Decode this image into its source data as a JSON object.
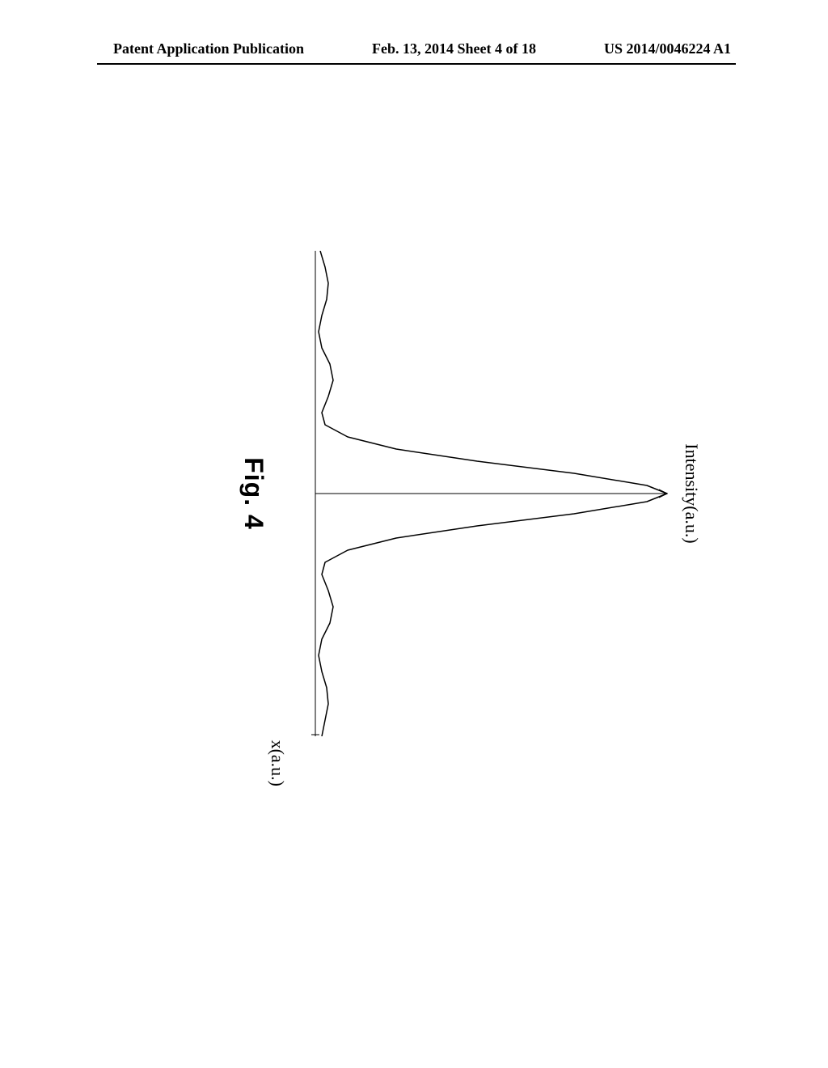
{
  "header": {
    "left": "Patent Application Publication",
    "center": "Feb. 13, 2014  Sheet 4 of 18",
    "right": "US 2014/0046224 A1"
  },
  "figure": {
    "y_axis_label": "Intensity(a.u.)",
    "x_axis_label": "x(a.u.)",
    "figure_label": "Fig. 4",
    "chart": {
      "type": "line",
      "background_color": "#ffffff",
      "line_color": "#000000",
      "line_width": 1.5,
      "axis_color": "#000000",
      "axis_width": 1,
      "title_fontsize": 22,
      "label_fontsize": 22,
      "figure_label_fontsize": 32,
      "xlim": [
        0,
        600
      ],
      "ylim": [
        0,
        440
      ],
      "center_line_x": 300,
      "peak_height": 435,
      "baseline_y": 8,
      "sinc_data": [
        {
          "x": 0,
          "y": 6
        },
        {
          "x": 20,
          "y": 12
        },
        {
          "x": 40,
          "y": 16
        },
        {
          "x": 60,
          "y": 14
        },
        {
          "x": 80,
          "y": 8
        },
        {
          "x": 100,
          "y": 4
        },
        {
          "x": 120,
          "y": 8
        },
        {
          "x": 140,
          "y": 18
        },
        {
          "x": 160,
          "y": 22
        },
        {
          "x": 180,
          "y": 16
        },
        {
          "x": 200,
          "y": 8
        },
        {
          "x": 215,
          "y": 12
        },
        {
          "x": 230,
          "y": 40
        },
        {
          "x": 245,
          "y": 100
        },
        {
          "x": 260,
          "y": 200
        },
        {
          "x": 275,
          "y": 320
        },
        {
          "x": 290,
          "y": 410
        },
        {
          "x": 300,
          "y": 435
        },
        {
          "x": 310,
          "y": 410
        },
        {
          "x": 325,
          "y": 320
        },
        {
          "x": 340,
          "y": 200
        },
        {
          "x": 355,
          "y": 100
        },
        {
          "x": 370,
          "y": 40
        },
        {
          "x": 385,
          "y": 12
        },
        {
          "x": 400,
          "y": 8
        },
        {
          "x": 420,
          "y": 16
        },
        {
          "x": 440,
          "y": 22
        },
        {
          "x": 460,
          "y": 18
        },
        {
          "x": 480,
          "y": 8
        },
        {
          "x": 500,
          "y": 4
        },
        {
          "x": 520,
          "y": 8
        },
        {
          "x": 540,
          "y": 14
        },
        {
          "x": 560,
          "y": 16
        },
        {
          "x": 580,
          "y": 12
        },
        {
          "x": 600,
          "y": 8
        }
      ]
    }
  }
}
